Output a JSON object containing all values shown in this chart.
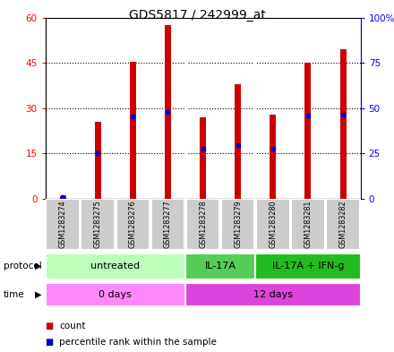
{
  "title": "GDS5817 / 242999_at",
  "samples": [
    "GSM1283274",
    "GSM1283275",
    "GSM1283276",
    "GSM1283277",
    "GSM1283278",
    "GSM1283279",
    "GSM1283280",
    "GSM1283281",
    "GSM1283282"
  ],
  "counts": [
    0.8,
    25.5,
    45.5,
    57.5,
    27.0,
    38.0,
    28.0,
    45.0,
    49.5
  ],
  "percentiles": [
    1.0,
    25.0,
    45.5,
    48.0,
    27.5,
    29.5,
    27.5,
    46.0,
    46.5
  ],
  "ylim_left": [
    0,
    60
  ],
  "ylim_right": [
    0,
    100
  ],
  "yticks_left": [
    0,
    15,
    30,
    45,
    60
  ],
  "yticks_right": [
    0,
    25,
    50,
    75,
    100
  ],
  "bar_color": "#cc0000",
  "dot_color": "#0000cc",
  "protocol_labels": [
    "untreated",
    "IL-17A",
    "IL-17A + IFN-g"
  ],
  "protocol_colors": [
    "#bbffbb",
    "#55cc55",
    "#22bb22"
  ],
  "time_labels": [
    "0 days",
    "12 days"
  ],
  "time_color_0": "#ff88ff",
  "time_color_12": "#dd44dd",
  "legend_count_color": "#cc0000",
  "legend_dot_color": "#0000cc",
  "sample_bg": "#cccccc",
  "plot_bg": "#ffffff",
  "bar_width": 0.18
}
